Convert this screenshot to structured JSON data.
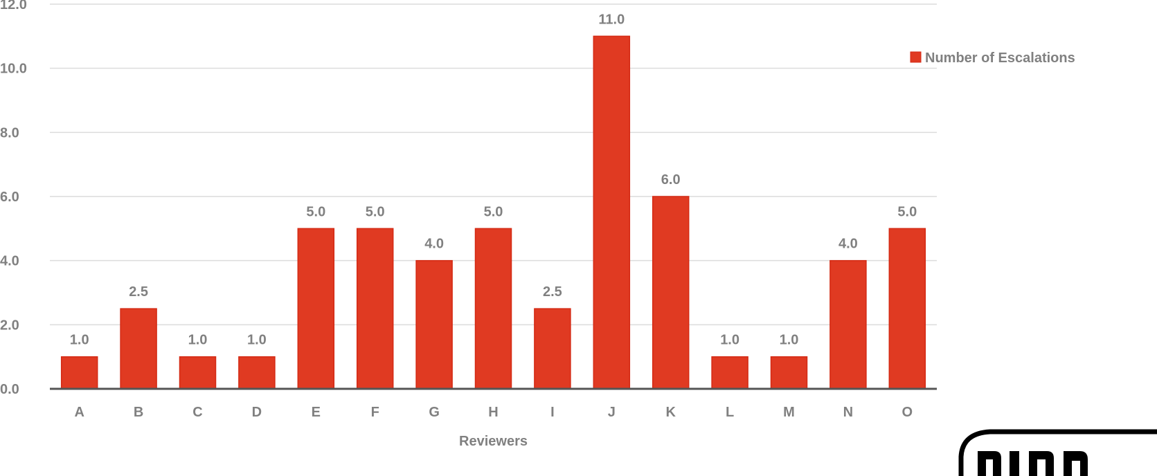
{
  "chart_data": {
    "type": "bar",
    "title": "",
    "xlabel": "Reviewers",
    "ylabel": "",
    "ylim": [
      0,
      12
    ],
    "yticks": [
      "0.0",
      "2.0",
      "4.0",
      "6.0",
      "8.0",
      "10.0",
      "12.0"
    ],
    "grid": true,
    "legend_position": "right",
    "categories": [
      "A",
      "B",
      "C",
      "D",
      "E",
      "F",
      "G",
      "H",
      "I",
      "J",
      "K",
      "L",
      "M",
      "N",
      "O"
    ],
    "series": [
      {
        "name": "Number of Escalations",
        "values": [
          1.0,
          2.5,
          1.0,
          1.0,
          5.0,
          5.0,
          4.0,
          5.0,
          2.5,
          11.0,
          6.0,
          1.0,
          1.0,
          4.0,
          5.0
        ],
        "labels": [
          "1.0",
          "2.5",
          "1.0",
          "1.0",
          "5.0",
          "5.0",
          "4.0",
          "5.0",
          "2.5",
          "11.0",
          "6.0",
          "1.0",
          "1.0",
          "4.0",
          "5.0"
        ],
        "color": "#e03a22",
        "stroke": "#d42a14"
      }
    ],
    "colors": {
      "gridline": "#dcdcdc",
      "axis": "#555555",
      "text": "#808080"
    }
  }
}
